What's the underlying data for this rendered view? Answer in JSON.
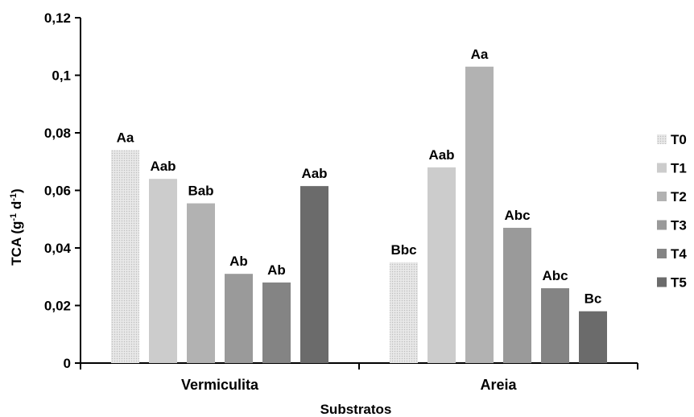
{
  "chart_data": {
    "type": "bar",
    "xlabel": "Substratos",
    "ylabel_main": "TCA (g",
    "ylabel_sup1": "-1",
    "ylabel_mid": " d",
    "ylabel_sup2": "-1",
    "ylabel_end": ")",
    "ylim": [
      0,
      0.12
    ],
    "yticks": [
      0,
      0.02,
      0.04,
      0.06,
      0.08,
      0.1,
      0.12
    ],
    "ytick_labels": [
      "0",
      "0,02",
      "0,04",
      "0,06",
      "0,08",
      "0,1",
      "0,12"
    ],
    "categories": [
      "Vermiculita",
      "Areia"
    ],
    "legend_position": "right",
    "grid": false,
    "series": [
      {
        "name": "T0",
        "color": "#e6e6e6",
        "pattern": "dotted",
        "values": [
          0.074,
          0.035
        ],
        "labels": [
          "Aa",
          "Bbc"
        ]
      },
      {
        "name": "T1",
        "color": "#cccccc",
        "values": [
          0.064,
          0.068
        ],
        "labels": [
          "Aab",
          "Aab"
        ]
      },
      {
        "name": "T2",
        "color": "#b2b2b2",
        "values": [
          0.0555,
          0.103
        ],
        "labels": [
          "Bab",
          "Aa"
        ]
      },
      {
        "name": "T3",
        "color": "#9a9a9a",
        "values": [
          0.031,
          0.047
        ],
        "labels": [
          "Ab",
          "Abc"
        ]
      },
      {
        "name": "T4",
        "color": "#848484",
        "values": [
          0.028,
          0.026
        ],
        "labels": [
          "Ab",
          "Abc"
        ]
      },
      {
        "name": "T5",
        "color": "#6b6b6b",
        "values": [
          0.0615,
          0.018
        ],
        "labels": [
          "Aab",
          "Bc"
        ]
      }
    ]
  }
}
